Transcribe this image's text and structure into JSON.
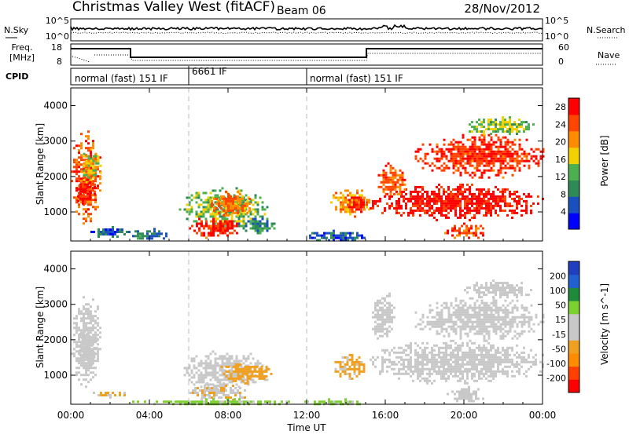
{
  "header": {
    "title": "Christmas Valley West (fitACF)",
    "beam": "Beam 06",
    "date": "28/Nov/2012"
  },
  "side_labels": {
    "nsky": "N.Sky",
    "freq_line1": "Freq.",
    "freq_line2": "[MHz]",
    "cpid": "CPID",
    "nsearch": "N.Search",
    "nave": "Nave"
  },
  "strip_axes": {
    "nsky_ticks": [
      "10^5",
      "10^0"
    ],
    "nsearch_ticks": [
      "10^5",
      "10^0"
    ],
    "freq_ticks": [
      "18",
      "8"
    ],
    "nave_ticks": [
      "60",
      "0"
    ]
  },
  "cpid_segments": [
    {
      "label": "normal (fast) 151 IF",
      "start_hour": 0
    },
    {
      "label": "6661 IF",
      "start_hour": 6
    },
    {
      "label": "normal (fast) 151 IF",
      "start_hour": 12
    }
  ],
  "colors": {
    "power_scale": [
      "#0000ff",
      "#1a4fc0",
      "#2e8b57",
      "#4caf50",
      "#f5d000",
      "#ff8c00",
      "#ff4500",
      "#ff0000"
    ],
    "velocity_scale": [
      "#1f3fbf",
      "#2060d0",
      "#1e8a3c",
      "#7cd030",
      "#c8c8c8",
      "#c8c8c8",
      "#f0a020",
      "#ff8c00",
      "#ff4000",
      "#ff0000"
    ]
  },
  "chart_data": [
    {
      "type": "heatmap",
      "title": "",
      "ylabel": "Slant Range [km]",
      "xlabel": "Time UT",
      "x_tick_labels": [
        "00:00",
        "04:00",
        "08:00",
        "12:00",
        "16:00",
        "20:00",
        "00:00"
      ],
      "y_tick_labels": [
        "1000",
        "2000",
        "3000",
        "4000"
      ],
      "xlim_hours": [
        0,
        24
      ],
      "ylim_km": [
        180,
        4500
      ],
      "colorbar": {
        "label": "Power [dB]",
        "ticks": [
          "4",
          "8",
          "12",
          "16",
          "20",
          "24",
          "28"
        ],
        "range": [
          0,
          30
        ]
      },
      "regions": [
        {
          "t0": 0.0,
          "t1": 1.5,
          "r0": 700,
          "r1": 3300,
          "value": 24
        },
        {
          "t0": 0.2,
          "t1": 1.2,
          "r0": 1200,
          "r1": 2000,
          "value": 28
        },
        {
          "t0": 0.5,
          "t1": 1.5,
          "r0": 1800,
          "r1": 2800,
          "value": 16
        },
        {
          "t0": 1.0,
          "t1": 3.0,
          "r0": 300,
          "r1": 600,
          "value": 6
        },
        {
          "t0": 3.0,
          "t1": 5.0,
          "r0": 200,
          "r1": 550,
          "value": 8
        },
        {
          "t0": 5.5,
          "t1": 10.0,
          "r0": 600,
          "r1": 1700,
          "value": 14
        },
        {
          "t0": 7.0,
          "t1": 9.2,
          "r0": 900,
          "r1": 1600,
          "value": 22
        },
        {
          "t0": 6.0,
          "t1": 8.5,
          "r0": 300,
          "r1": 900,
          "value": 26
        },
        {
          "t0": 8.5,
          "t1": 10.5,
          "r0": 400,
          "r1": 900,
          "value": 10
        },
        {
          "t0": 12.0,
          "t1": 15.0,
          "r0": 200,
          "r1": 500,
          "value": 6
        },
        {
          "t0": 13.2,
          "t1": 15.2,
          "r0": 900,
          "r1": 1700,
          "value": 20
        },
        {
          "t0": 14.0,
          "t1": 15.0,
          "r0": 1000,
          "r1": 1500,
          "value": 26
        },
        {
          "t0": 15.2,
          "t1": 24.0,
          "r0": 800,
          "r1": 1800,
          "value": 28
        },
        {
          "t0": 15.5,
          "t1": 17.0,
          "r0": 1400,
          "r1": 2400,
          "value": 24
        },
        {
          "t0": 17.5,
          "t1": 24.0,
          "r0": 2000,
          "r1": 3200,
          "value": 26
        },
        {
          "t0": 20.0,
          "t1": 23.5,
          "r0": 3200,
          "r1": 3700,
          "value": 14
        },
        {
          "t0": 19.0,
          "t1": 21.0,
          "r0": 250,
          "r1": 700,
          "value": 24
        }
      ]
    },
    {
      "type": "heatmap",
      "title": "",
      "ylabel": "Slant Range [km]",
      "xlabel": "Time UT",
      "x_tick_labels": [
        "00:00",
        "04:00",
        "08:00",
        "12:00",
        "16:00",
        "20:00",
        "00:00"
      ],
      "y_tick_labels": [
        "1000",
        "2000",
        "3000",
        "4000"
      ],
      "xlim_hours": [
        0,
        24
      ],
      "ylim_km": [
        180,
        4500
      ],
      "colorbar": {
        "label": "Velocity [m s^-1]",
        "ticks": [
          "200",
          "100",
          "50",
          "15",
          "-15",
          "-50",
          "-100",
          "-200"
        ],
        "range": [
          -250,
          250
        ]
      },
      "regions": [
        {
          "t0": 0.0,
          "t1": 1.5,
          "r0": 700,
          "r1": 3300,
          "value": 0
        },
        {
          "t0": 0.3,
          "t1": 1.3,
          "r0": 1200,
          "r1": 2400,
          "value": -5
        },
        {
          "t0": 1.0,
          "t1": 3.0,
          "r0": 400,
          "r1": 600,
          "value": -60
        },
        {
          "t0": 5.5,
          "t1": 10.0,
          "r0": 600,
          "r1": 1700,
          "value": 0
        },
        {
          "t0": 7.5,
          "t1": 10.2,
          "r0": 800,
          "r1": 1400,
          "value": -70
        },
        {
          "t0": 5.8,
          "t1": 9.0,
          "r0": 300,
          "r1": 800,
          "value": -40
        },
        {
          "t0": 3.0,
          "t1": 12.0,
          "r0": 180,
          "r1": 350,
          "value": 60
        },
        {
          "t0": 12.0,
          "t1": 15.0,
          "r0": 180,
          "r1": 350,
          "value": 60
        },
        {
          "t0": 13.3,
          "t1": 15.0,
          "r0": 900,
          "r1": 1600,
          "value": -60
        },
        {
          "t0": 15.2,
          "t1": 24.0,
          "r0": 800,
          "r1": 2000,
          "value": 0
        },
        {
          "t0": 17.5,
          "t1": 24.0,
          "r0": 2000,
          "r1": 3200,
          "value": 0
        },
        {
          "t0": 15.2,
          "t1": 16.5,
          "r0": 2000,
          "r1": 3400,
          "value": 0
        },
        {
          "t0": 20.0,
          "t1": 23.5,
          "r0": 3200,
          "r1": 3700,
          "value": 0
        },
        {
          "t0": 19.0,
          "t1": 21.0,
          "r0": 250,
          "r1": 700,
          "value": 0
        }
      ]
    }
  ]
}
